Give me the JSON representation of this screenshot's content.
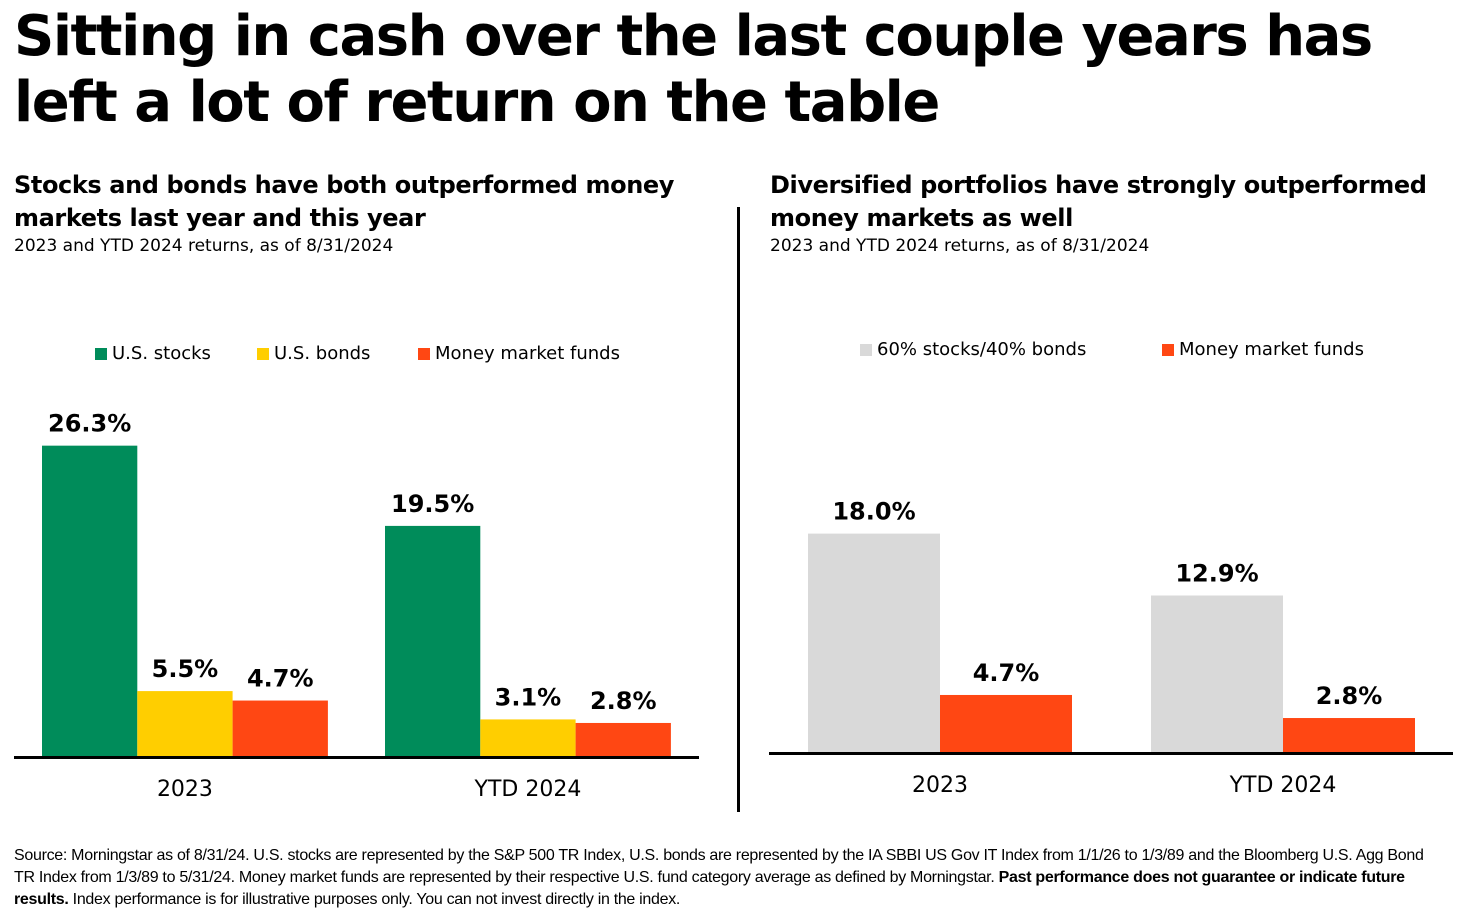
{
  "title": "Sitting in cash over the last couple years has left a lot of return on the table",
  "left_panel": {
    "title": "Stocks and bonds have both outperformed money markets last year and this year",
    "subtitle": "2023 and YTD 2024 returns, as of 8/31/2024"
  },
  "right_panel": {
    "title": "Diversified portfolios have strongly outperformed money markets as well",
    "subtitle": "2023 and YTD 2024 returns, as of 8/31/2024"
  },
  "chart_data": [
    {
      "type": "bar",
      "categories": [
        "2023",
        "YTD 2024"
      ],
      "series": [
        {
          "name": "U.S. stocks",
          "color": "#008C5A",
          "values": [
            26.3,
            19.5
          ],
          "labels": [
            "26.3%",
            "19.5%"
          ]
        },
        {
          "name": "U.S. bonds",
          "color": "#FFCE00",
          "values": [
            5.5,
            3.1
          ],
          "labels": [
            "5.5%",
            "3.1%"
          ]
        },
        {
          "name": "Money market funds",
          "color": "#FF4713",
          "values": [
            4.7,
            2.8
          ],
          "labels": [
            "4.7%",
            "2.8%"
          ]
        }
      ],
      "ylim": [
        0,
        30
      ],
      "legend": "top-center"
    },
    {
      "type": "bar",
      "categories": [
        "2023",
        "YTD 2024"
      ],
      "series": [
        {
          "name": "60% stocks/40% bonds",
          "color": "#D9D9D9",
          "values": [
            18.0,
            12.9
          ],
          "labels": [
            "18.0%",
            "12.9%"
          ]
        },
        {
          "name": "Money market funds",
          "color": "#FF4713",
          "values": [
            4.7,
            2.8
          ],
          "labels": [
            "4.7%",
            "2.8%"
          ]
        }
      ],
      "ylim": [
        0,
        30
      ],
      "legend": "top-center"
    }
  ],
  "source": {
    "text": "Source: Morningstar as of 8/31/24. U.S. stocks are represented by the S&P 500 TR Index, U.S. bonds are represented by the IA SBBI US Gov IT Index from 1/1/26 to 1/3/89 and the Bloomberg U.S. Agg Bond TR Index from 1/3/89 to 5/31/24. Money market funds are represented by their respective U.S. fund category average as defined by Morningstar.",
    "bold": "Past performance does not guarantee or indicate future results.",
    "tail": "Index performance is for illustrative purposes only. You can not invest directly in the index."
  }
}
